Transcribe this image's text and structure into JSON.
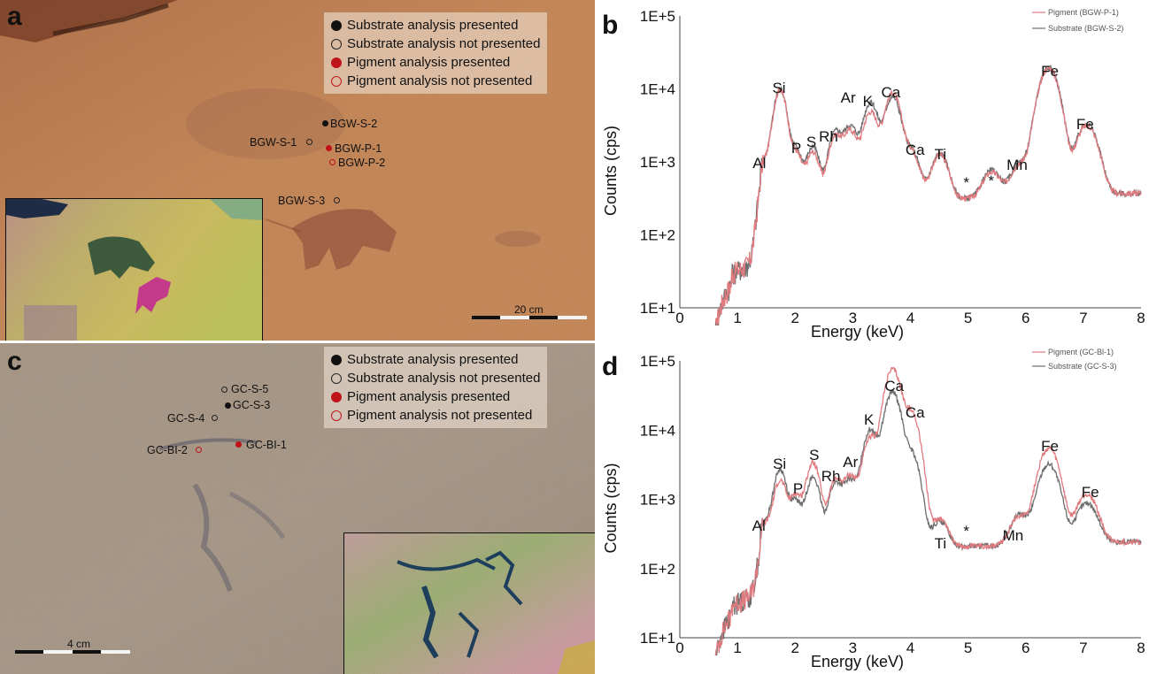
{
  "panels": {
    "a": {
      "letter": "a",
      "legend": [
        {
          "kind": "substrate-filled",
          "label": "Substrate analysis presented"
        },
        {
          "kind": "substrate-open",
          "label": "Substrate analysis not presented"
        },
        {
          "kind": "pigment-filled",
          "label": "Pigment analysis presented"
        },
        {
          "kind": "pigment-open",
          "label": "Pigment analysis not presented"
        }
      ],
      "points": [
        "BGW-S-2",
        "BGW-S-1",
        "BGW-P-1",
        "BGW-P-2",
        "BGW-S-3"
      ],
      "scale_label": "20 cm"
    },
    "b": {
      "letter": "b"
    },
    "c": {
      "letter": "c",
      "legend": [
        {
          "kind": "substrate-filled",
          "label": "Substrate analysis presented"
        },
        {
          "kind": "substrate-open",
          "label": "Substrate analysis not presented"
        },
        {
          "kind": "pigment-filled",
          "label": "Pigment analysis presented"
        },
        {
          "kind": "pigment-open",
          "label": "Pigment analysis not presented"
        }
      ],
      "points": [
        "GC-S-5",
        "GC-S-3",
        "GC-S-4",
        "GC-BI-2",
        "GC-BI-1"
      ],
      "scale_label": "4 cm"
    },
    "d": {
      "letter": "d"
    }
  },
  "colors": {
    "pigment": "#e07a7f",
    "substrate": "#6e6e6e",
    "marker_red": "#c0141b"
  },
  "chart_data": [
    {
      "panel": "b",
      "type": "line",
      "ylabel": "Counts (cps)",
      "xlabel": "Energy (keV)",
      "yscale": "log",
      "ylim": [
        10,
        100000
      ],
      "xlim": [
        0,
        8
      ],
      "x_ticks": [
        "0",
        "1",
        "2",
        "3",
        "4",
        "5",
        "6",
        "7",
        "8"
      ],
      "y_ticks": [
        "1E+1",
        "1E+2",
        "1E+3",
        "1E+4",
        "1E+5"
      ],
      "legend_position": "top-right",
      "series": [
        {
          "name": "Pigment (BGW-P-1)",
          "color": "#e07a7f",
          "peaks": [
            [
              1.49,
              750
            ],
            [
              1.74,
              9500
            ],
            [
              2.01,
              1100
            ],
            [
              2.31,
              1100
            ],
            [
              2.7,
              2000
            ],
            [
              2.96,
              2400
            ],
            [
              3.31,
              4500
            ],
            [
              3.69,
              8500
            ],
            [
              4.01,
              1100
            ],
            [
              4.51,
              950
            ],
            [
              5.41,
              400
            ],
            [
              5.9,
              580
            ],
            [
              6.4,
              19000
            ],
            [
              7.06,
              2800
            ]
          ]
        },
        {
          "name": "Substrate (BGW-S-2)",
          "color": "#6e6e6e",
          "peaks": [
            [
              1.49,
              800
            ],
            [
              1.74,
              9800
            ],
            [
              2.01,
              1250
            ],
            [
              2.31,
              1350
            ],
            [
              2.7,
              2300
            ],
            [
              2.96,
              2800
            ],
            [
              3.31,
              6200
            ],
            [
              3.69,
              7500
            ],
            [
              4.01,
              1150
            ],
            [
              4.51,
              1000
            ],
            [
              5.41,
              450
            ],
            [
              5.9,
              600
            ],
            [
              6.4,
              19500
            ],
            [
              7.06,
              3000
            ]
          ]
        }
      ],
      "annotations": [
        "Al",
        "Si",
        "P",
        "S",
        "Rh",
        "Ar",
        "K",
        "Ca",
        "Ca",
        "Ti",
        "*",
        "*",
        "Mn",
        "Fe",
        "Fe"
      ]
    },
    {
      "panel": "d",
      "type": "line",
      "ylabel": "Counts (cps)",
      "xlabel": "Energy (keV)",
      "yscale": "log",
      "ylim": [
        10,
        100000
      ],
      "xlim": [
        0,
        8
      ],
      "x_ticks": [
        "0",
        "1",
        "2",
        "3",
        "4",
        "5",
        "6",
        "7",
        "8"
      ],
      "y_ticks": [
        "1E+1",
        "1E+2",
        "1E+3",
        "1E+4",
        "1E+5"
      ],
      "legend_position": "top-right",
      "series": [
        {
          "name": "Pigment (GC-Bl-1)",
          "color": "#e07a7f",
          "peaks": [
            [
              1.49,
              260
            ],
            [
              1.74,
              1700
            ],
            [
              2.01,
              1000
            ],
            [
              2.31,
              3200
            ],
            [
              2.7,
              1700
            ],
            [
              2.96,
              2000
            ],
            [
              3.31,
              7500
            ],
            [
              3.69,
              75000
            ],
            [
              4.01,
              18000
            ],
            [
              4.51,
              330
            ],
            [
              5.9,
              350
            ],
            [
              6.4,
              5200
            ],
            [
              7.06,
              950
            ]
          ]
        },
        {
          "name": "Substrate (GC-S-3)",
          "color": "#6e6e6e",
          "peaks": [
            [
              1.49,
              280
            ],
            [
              1.74,
              2500
            ],
            [
              2.01,
              780
            ],
            [
              2.31,
              1900
            ],
            [
              2.7,
              1500
            ],
            [
              2.96,
              1700
            ],
            [
              3.31,
              10000
            ],
            [
              3.69,
              35000
            ],
            [
              4.01,
              4500
            ],
            [
              4.51,
              280
            ],
            [
              5.9,
              380
            ],
            [
              6.4,
              3000
            ],
            [
              7.06,
              650
            ]
          ]
        }
      ],
      "annotations": [
        "Al",
        "Si",
        "P",
        "S",
        "Rh",
        "Ar",
        "K",
        "Ca",
        "Ca",
        "Ti",
        "*",
        "Mn",
        "Fe",
        "Fe"
      ]
    }
  ]
}
